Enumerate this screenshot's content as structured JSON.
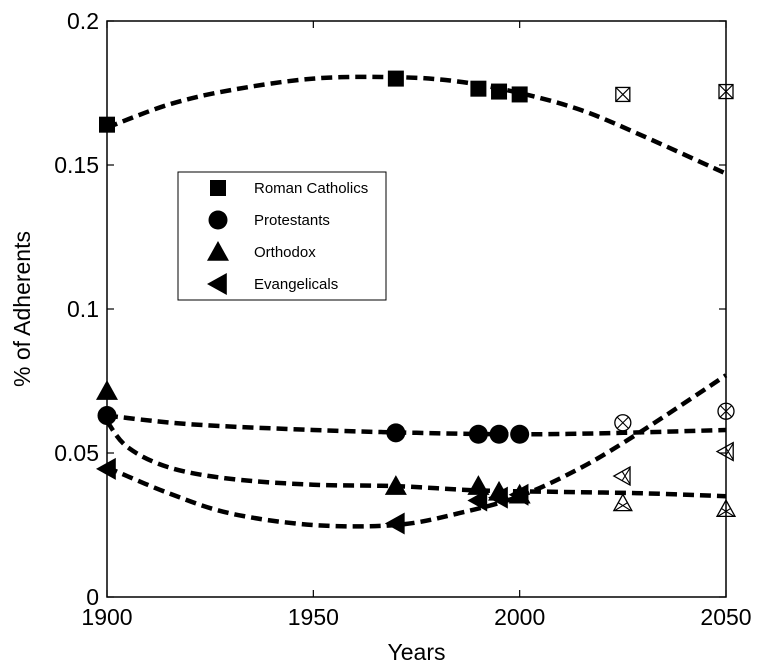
{
  "chart_data": {
    "type": "scatter",
    "xlabel": "Years",
    "ylabel": "% of Adherents",
    "xlim": [
      1900,
      2050
    ],
    "ylim": [
      0,
      0.2
    ],
    "xticks": [
      1900,
      1950,
      2000,
      2050
    ],
    "xtick_labels": [
      "1900",
      "1950",
      "2000",
      "2050"
    ],
    "yticks": [
      0,
      0.05,
      0.1,
      0.15,
      0.2
    ],
    "ytick_labels": [
      "0",
      "0.05",
      "0.1",
      "0.15",
      "0.2"
    ],
    "grid": false,
    "legend_position": "upper-left",
    "series": [
      {
        "name": "Roman Catholics",
        "marker": "square",
        "color": "#000000",
        "observed": [
          [
            1900,
            0.164
          ],
          [
            1970,
            0.18
          ],
          [
            1990,
            0.1765
          ],
          [
            1995,
            0.1755
          ],
          [
            2000,
            0.1745
          ]
        ],
        "projected": [
          [
            2025,
            0.1745
          ],
          [
            2050,
            0.1755
          ]
        ],
        "fit": [
          [
            1900,
            0.163
          ],
          [
            1915,
            0.171
          ],
          [
            1930,
            0.176
          ],
          [
            1950,
            0.18
          ],
          [
            1970,
            0.1805
          ],
          [
            1985,
            0.179
          ],
          [
            2000,
            0.175
          ],
          [
            2015,
            0.169
          ],
          [
            2030,
            0.16
          ],
          [
            2050,
            0.147
          ]
        ]
      },
      {
        "name": "Protestants",
        "marker": "circle",
        "color": "#000000",
        "observed": [
          [
            1900,
            0.063
          ],
          [
            1970,
            0.057
          ],
          [
            1990,
            0.0565
          ],
          [
            1995,
            0.0565
          ],
          [
            2000,
            0.0565
          ]
        ],
        "projected": [
          [
            2025,
            0.0605
          ],
          [
            2050,
            0.0645
          ]
        ],
        "fit": [
          [
            1900,
            0.063
          ],
          [
            1920,
            0.06
          ],
          [
            1950,
            0.058
          ],
          [
            1975,
            0.057
          ],
          [
            2000,
            0.0565
          ],
          [
            2025,
            0.057
          ],
          [
            2050,
            0.058
          ]
        ]
      },
      {
        "name": "Orthodox",
        "marker": "triangle-up",
        "color": "#000000",
        "observed": [
          [
            1900,
            0.0715
          ],
          [
            1970,
            0.0385
          ],
          [
            1990,
            0.0385
          ],
          [
            1995,
            0.0365
          ],
          [
            2000,
            0.0355
          ]
        ],
        "projected": [
          [
            2025,
            0.0325
          ],
          [
            2050,
            0.0305
          ]
        ],
        "fit": [
          [
            1900,
            0.061
          ],
          [
            1905,
            0.052
          ],
          [
            1915,
            0.045
          ],
          [
            1930,
            0.041
          ],
          [
            1950,
            0.039
          ],
          [
            1970,
            0.0385
          ],
          [
            1990,
            0.037
          ],
          [
            2010,
            0.0365
          ],
          [
            2030,
            0.036
          ],
          [
            2050,
            0.035
          ]
        ]
      },
      {
        "name": "Evangelicals",
        "marker": "triangle-left",
        "color": "#000000",
        "observed": [
          [
            1900,
            0.0445
          ],
          [
            1970,
            0.0255
          ],
          [
            1990,
            0.0335
          ],
          [
            1995,
            0.0345
          ],
          [
            2000,
            0.0355
          ]
        ],
        "projected": [
          [
            2025,
            0.042
          ],
          [
            2050,
            0.0505
          ]
        ],
        "fit": [
          [
            1900,
            0.045
          ],
          [
            1915,
            0.036
          ],
          [
            1930,
            0.029
          ],
          [
            1950,
            0.025
          ],
          [
            1970,
            0.025
          ],
          [
            1985,
            0.029
          ],
          [
            2000,
            0.035
          ],
          [
            2015,
            0.045
          ],
          [
            2030,
            0.058
          ],
          [
            2050,
            0.077
          ]
        ]
      }
    ]
  }
}
